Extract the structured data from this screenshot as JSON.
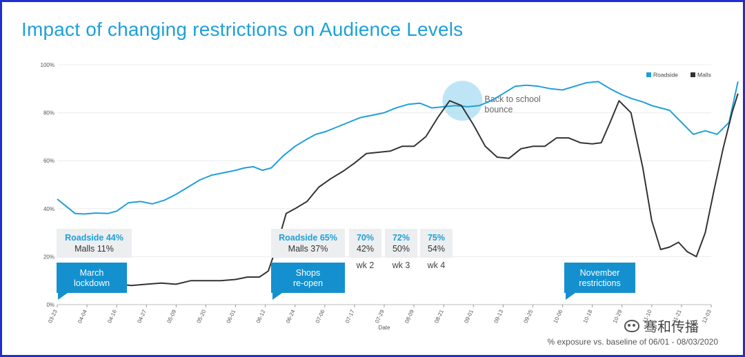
{
  "title": "Impact of changing restrictions on Audience Levels",
  "footnote": "% exposure vs. baseline of 06/01 - 08/03/2020",
  "watermark": "骞和传播",
  "colors": {
    "roadside": "#1ea0d8",
    "malls": "#333333",
    "callout_box": "#1490cf",
    "stat_box": "#eceef0",
    "bubble": "#a8dcf2"
  },
  "chart_data": {
    "type": "line",
    "title": "Impact of changing restrictions on Audience Levels",
    "xlabel": "Date",
    "ylabel": "",
    "ylim": [
      0,
      100
    ],
    "yticks": [
      "0%",
      "20%",
      "40%",
      "60%",
      "80%",
      "100%"
    ],
    "x_labels": [
      "03-23",
      "04-04",
      "04-16",
      "04-27",
      "05-09",
      "05-20",
      "06-01",
      "06-12",
      "06-24",
      "07-06",
      "07-17",
      "07-29",
      "08-09",
      "08-21",
      "09-01",
      "09-13",
      "09-25",
      "10-06",
      "10-18",
      "10-29",
      "11-10",
      "11-21",
      "12-03"
    ],
    "grid": true,
    "legend_position": "top-right",
    "series": [
      {
        "name": "Roadside",
        "x": [
          0,
          0.3,
          0.6,
          0.9,
          1.3,
          1.7,
          2.0,
          2.4,
          2.8,
          3.2,
          3.6,
          4.0,
          4.4,
          4.8,
          5.2,
          5.6,
          6.0,
          6.3,
          6.6,
          6.9,
          7.2,
          7.6,
          8.0,
          8.4,
          8.7,
          9.0,
          9.4,
          9.8,
          10.2,
          10.6,
          11.0,
          11.4,
          11.8,
          12.2,
          12.6,
          13.0,
          13.4,
          13.8,
          14.2,
          14.6,
          15.0,
          15.4,
          15.8,
          16.2,
          16.6,
          17.0,
          17.4,
          17.8,
          18.2,
          18.6,
          19.0,
          19.3,
          19.7,
          20.0,
          20.3,
          20.6,
          21.0,
          21.4,
          21.8,
          22.2,
          22.6,
          22.9
        ],
        "values": [
          44,
          41,
          38,
          37.8,
          38.2,
          38,
          39,
          42.5,
          43,
          42,
          43.5,
          46,
          49,
          52,
          54,
          55,
          56,
          57,
          57.5,
          56,
          57,
          62,
          66,
          69,
          71,
          72,
          74,
          76,
          78,
          79,
          80,
          82,
          83.5,
          84,
          82,
          82.5,
          83,
          82.5,
          83,
          85,
          88,
          91,
          91.5,
          91,
          90,
          89.5,
          91,
          92.5,
          93,
          90,
          87.5,
          86,
          84.5,
          83,
          82,
          81,
          76,
          71,
          72.5,
          71,
          76,
          93
        ]
      },
      {
        "name": "Malls",
        "x": [
          2.0,
          2.5,
          3.0,
          3.5,
          4.0,
          4.5,
          5.0,
          5.5,
          6.0,
          6.4,
          6.8,
          7.1,
          7.4,
          7.7,
          8.0,
          8.4,
          8.8,
          9.2,
          9.6,
          10.0,
          10.4,
          10.8,
          11.2,
          11.6,
          12.0,
          12.4,
          12.8,
          13.2,
          13.6,
          14.0,
          14.4,
          14.8,
          15.2,
          15.6,
          16.0,
          16.4,
          16.8,
          17.2,
          17.6,
          18.0,
          18.3,
          18.6,
          18.9,
          19.3,
          19.7,
          20.0,
          20.3,
          20.6,
          20.9,
          21.2,
          21.5,
          21.8,
          22.1,
          22.4,
          22.7,
          22.9
        ],
        "values": [
          8.5,
          8,
          8.5,
          9,
          8.5,
          10,
          10,
          10,
          10.5,
          11.5,
          11.5,
          14,
          25,
          38,
          40,
          43,
          49,
          52.5,
          55.5,
          59,
          63,
          63.5,
          64,
          66,
          66,
          70,
          78,
          85,
          83,
          75,
          66,
          61.5,
          61,
          65,
          66,
          66,
          69.5,
          69.5,
          67.5,
          67,
          67.5,
          76,
          85,
          80,
          57,
          35,
          23,
          24,
          26,
          22,
          20,
          30,
          48,
          65,
          80,
          88
        ]
      }
    ],
    "annotations": [
      {
        "label_lines": [
          "March",
          "lockdown"
        ],
        "stat_roadside": "Roadside 44%",
        "stat_malls": "Malls 11%"
      },
      {
        "label_lines": [
          "Shops",
          "re-open"
        ],
        "stat_roadside": "Roadside 65%",
        "stat_malls": "Malls 37%"
      },
      {
        "week_label": "wk 2",
        "stat_roadside": "70%",
        "stat_malls": "42%"
      },
      {
        "week_label": "wk 3",
        "stat_roadside": "72%",
        "stat_malls": "50%"
      },
      {
        "week_label": "wk 4",
        "stat_roadside": "75%",
        "stat_malls": "54%"
      },
      {
        "label_lines": [
          "November",
          "restrictions"
        ]
      },
      {
        "bubble_text_lines": [
          "Back to school",
          "bounce"
        ]
      }
    ]
  }
}
